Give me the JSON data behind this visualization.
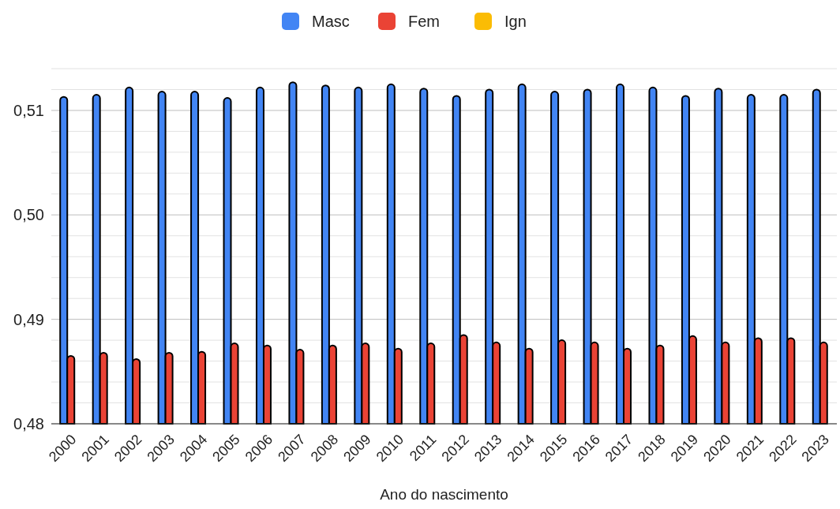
{
  "chart_data": {
    "type": "bar",
    "xlabel": "Ano do nascimento",
    "categories": [
      "2000",
      "2001",
      "2002",
      "2003",
      "2004",
      "2005",
      "2006",
      "2007",
      "2008",
      "2009",
      "2010",
      "2011",
      "2012",
      "2013",
      "2014",
      "2015",
      "2016",
      "2017",
      "2018",
      "2019",
      "2020",
      "2021",
      "2022",
      "2023"
    ],
    "series": [
      {
        "name": "Masc",
        "color": "#4285f4",
        "values": [
          0.5113,
          0.5115,
          0.5122,
          0.5118,
          0.5118,
          0.5112,
          0.5122,
          0.5127,
          0.5124,
          0.5122,
          0.5125,
          0.5121,
          0.5114,
          0.512,
          0.5125,
          0.5118,
          0.512,
          0.5125,
          0.5122,
          0.5114,
          0.5121,
          0.5115,
          0.5115,
          0.512
        ]
      },
      {
        "name": "Fem",
        "color": "#ea4335",
        "values": [
          0.4865,
          0.4868,
          0.4862,
          0.4868,
          0.4869,
          0.4877,
          0.4875,
          0.4871,
          0.4875,
          0.4877,
          0.4872,
          0.4877,
          0.4885,
          0.4878,
          0.4872,
          0.488,
          0.4878,
          0.4872,
          0.4875,
          0.4884,
          0.4878,
          0.4882,
          0.4882,
          0.4878
        ]
      },
      {
        "name": "Ign",
        "color": "#fbbc04",
        "values": [
          null,
          null,
          null,
          null,
          null,
          null,
          null,
          null,
          null,
          null,
          null,
          null,
          null,
          null,
          null,
          null,
          null,
          null,
          null,
          null,
          null,
          null,
          null,
          null
        ]
      }
    ],
    "ylim": [
      0.48,
      0.514
    ],
    "yticks": [
      {
        "value": 0.48,
        "label": "0,48"
      },
      {
        "value": 0.482,
        "label": null
      },
      {
        "value": 0.484,
        "label": null
      },
      {
        "value": 0.486,
        "label": null
      },
      {
        "value": 0.488,
        "label": null
      },
      {
        "value": 0.49,
        "label": "0,49"
      },
      {
        "value": 0.492,
        "label": null
      },
      {
        "value": 0.494,
        "label": null
      },
      {
        "value": 0.496,
        "label": null
      },
      {
        "value": 0.498,
        "label": null
      },
      {
        "value": 0.5,
        "label": "0,50"
      },
      {
        "value": 0.502,
        "label": null
      },
      {
        "value": 0.504,
        "label": null
      },
      {
        "value": 0.506,
        "label": null
      },
      {
        "value": 0.508,
        "label": null
      },
      {
        "value": 0.51,
        "label": "0,51"
      },
      {
        "value": 0.512,
        "label": null
      },
      {
        "value": 0.514,
        "label": null
      }
    ],
    "grid": "y",
    "legend": "top"
  }
}
